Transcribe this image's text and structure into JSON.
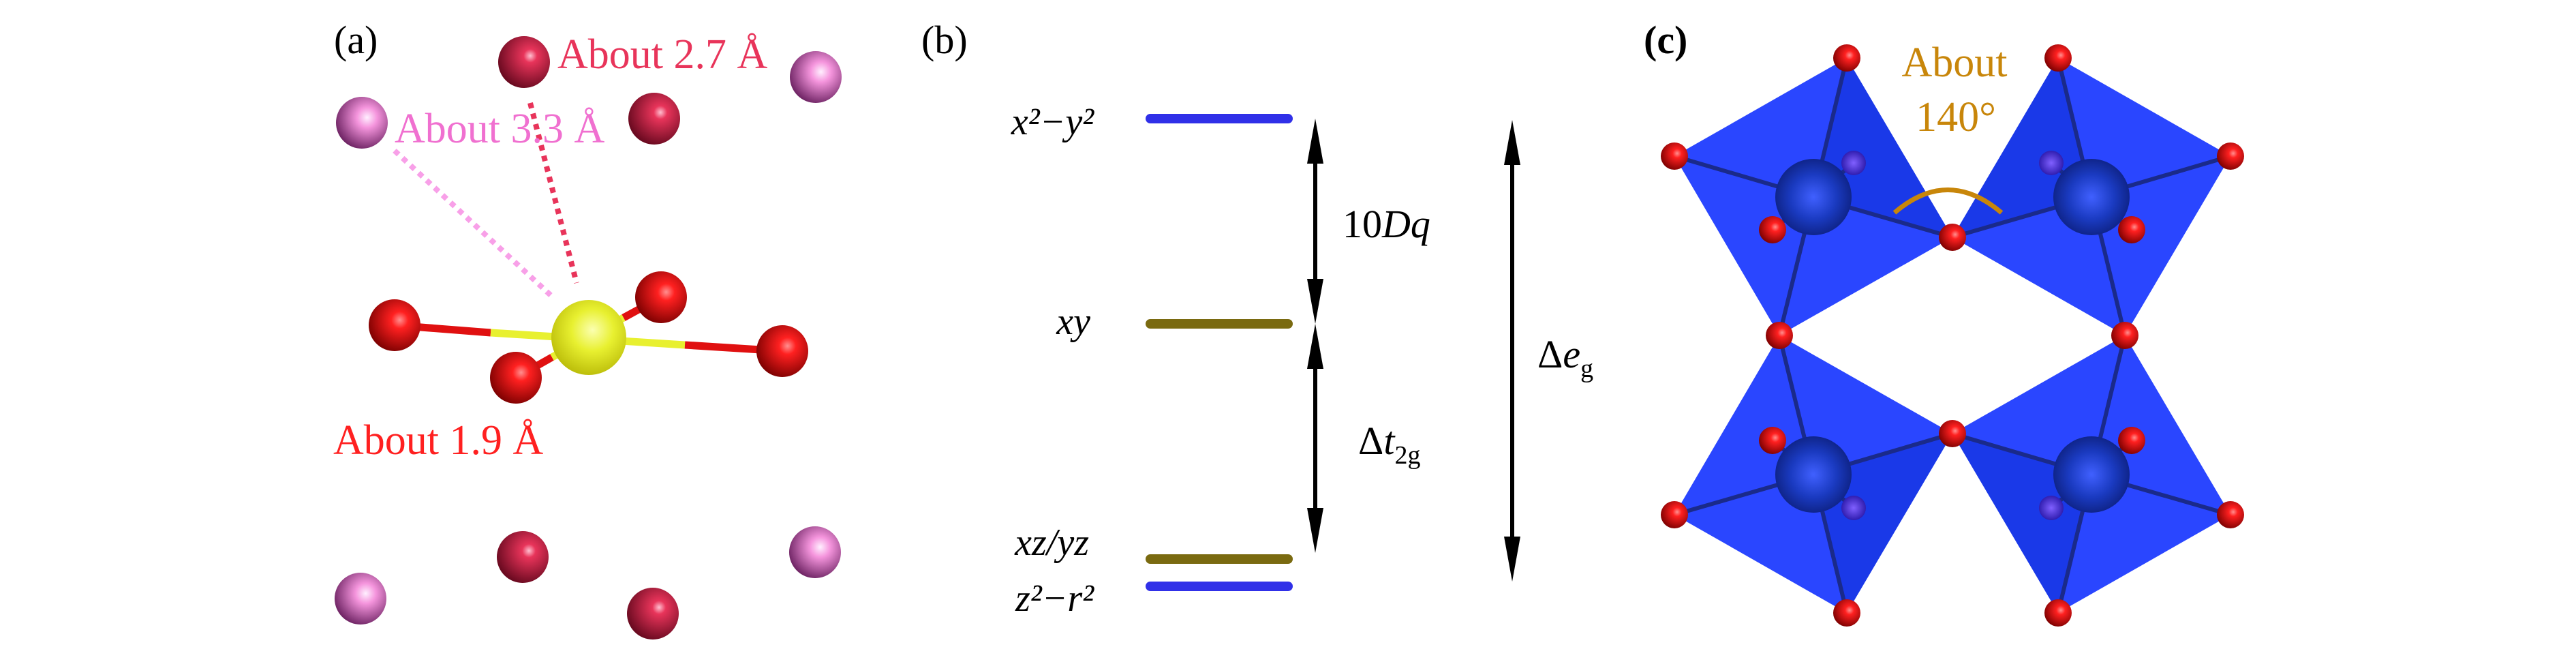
{
  "panels": {
    "a": {
      "label": "(a)",
      "distance_27": "About 2.7 Å",
      "distance_33": "About 3.3 Å",
      "distance_19": "About 1.9 Å"
    },
    "b": {
      "label": "(b)",
      "levels": {
        "x2y2": "x²−y²",
        "xy": "xy",
        "xzyz": "xz/yz",
        "z2r2": "z²−r²"
      },
      "ten_dq": {
        "num": "10",
        "sym": "Dq"
      },
      "delta_t2g": {
        "delta": "Δ",
        "sym": "t",
        "sub": "2g"
      },
      "delta_eg": {
        "delta": "Δ",
        "sym": "e",
        "sub": "g"
      }
    },
    "c": {
      "label": "(c)",
      "angle_line1": "About",
      "angle_line2": "140°"
    }
  },
  "colors": {
    "oxygen": "#ff2020",
    "crimson_site": "#e8345a",
    "pink_site": "#f070d0",
    "center_atom": "#e8f030",
    "eg_level": "#3030e8",
    "t2g_level": "#7a6a10",
    "octahedron": "#1f3cff",
    "angle_annotation": "#c8860a"
  }
}
